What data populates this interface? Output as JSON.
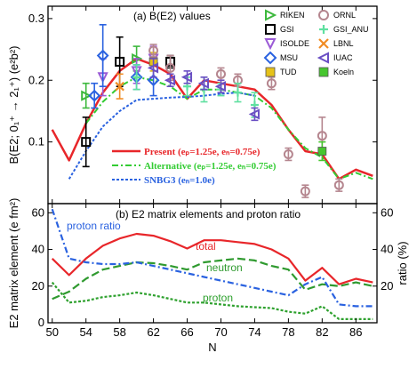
{
  "colors": {
    "present": "#e8262a",
    "alternative": "#33cc33",
    "snbg3": "#2a62e0",
    "total": "#e8262a",
    "neutron": "#2f9a2f",
    "proton": "#2ea12e",
    "proton_ratio": "#2a62e0",
    "RIKEN": "#3cb83c",
    "GSI": "#000000",
    "ISOLDE": "#9b5bd6",
    "MSU": "#2a62e0",
    "TUD": "#e6c21a",
    "ORNL": "#b5868f",
    "GSI_ANU": "#5fe0a0",
    "LBNL": "#f08c24",
    "IUAC": "#6a4fc4",
    "Koeln": "#46c62e"
  },
  "panel_a": {
    "title": "(a) B(E2) values",
    "ylabel": "B(E2; 0₁⁺ → 2₁⁺) (e²b²)",
    "yticks": [
      "0.1",
      "0.2",
      "0.3"
    ],
    "legend": [
      "RIKEN",
      "GSI",
      "ISOLDE",
      "MSU",
      "TUD",
      "ORNL",
      "GSI_ANU",
      "LBNL",
      "IUAC",
      "Koeln"
    ],
    "model_labels": {
      "present": "Present (eₚ=1.25e, eₙ=0.75e)",
      "alternative": "Alternative (eₚ=1.25e, eₙ=0.75e)",
      "snbg3": "SNBG3 (eₙ=1.0e)"
    }
  },
  "panel_b": {
    "title": "(b) E2 matrix elements and proton ratio",
    "ylabel": "E2 matrix element (e fm²)",
    "y2label": "ratio (%)",
    "yticks": [
      "0",
      "20",
      "40",
      "60"
    ],
    "y2ticks": [
      "20",
      "40",
      "60"
    ],
    "label_total": "total",
    "label_neutron": "neutron",
    "label_proton": "proton",
    "label_ratio": "proton ratio"
  },
  "xaxis": {
    "label": "N",
    "ticks": [
      "50",
      "54",
      "58",
      "62",
      "66",
      "70",
      "74",
      "78",
      "82",
      "86"
    ]
  },
  "chart_data": [
    {
      "type": "line",
      "title": "(a) B(E2) values",
      "xlabel": "N",
      "ylabel": "B(E2; 0₁⁺ → 2₁⁺) (e²b²)",
      "xlim": [
        49.5,
        88.5
      ],
      "ylim": [
        0,
        0.32
      ],
      "legend_position": "top-right",
      "series": [
        {
          "name": "Present (eₚ=1.25e, eₙ=0.75e)",
          "style": "solid",
          "x": [
            50,
            52,
            54,
            56,
            58,
            60,
            62,
            64,
            66,
            68,
            70,
            72,
            74,
            76,
            78,
            80,
            82,
            84,
            86,
            88
          ],
          "y": [
            0.12,
            0.07,
            0.13,
            0.18,
            0.215,
            0.235,
            0.225,
            0.21,
            0.17,
            0.2,
            0.195,
            0.19,
            0.185,
            0.16,
            0.12,
            0.085,
            0.08,
            0.04,
            0.055,
            0.045
          ]
        },
        {
          "name": "Alternative (eₚ=1.25e, eₙ=0.75e)",
          "style": "dash-dot",
          "x": [
            54,
            56,
            58,
            60,
            62,
            64,
            66,
            68,
            70,
            72,
            74,
            76,
            78,
            80,
            82,
            84,
            86,
            88
          ],
          "y": [
            0.13,
            0.165,
            0.19,
            0.205,
            0.2,
            0.19,
            0.17,
            0.185,
            0.185,
            0.18,
            0.175,
            0.155,
            0.12,
            0.09,
            0.075,
            0.04,
            0.05,
            0.04
          ]
        },
        {
          "name": "SNBG3 (eₙ=1.0e)",
          "style": "dotted",
          "x": [
            52,
            54,
            56,
            58,
            60,
            62,
            64,
            66,
            68,
            70,
            72,
            74
          ],
          "y": [
            0.04,
            0.085,
            0.125,
            0.15,
            0.168,
            0.17,
            0.172,
            0.173,
            0.175,
            0.178,
            0.18,
            0.175
          ]
        }
      ],
      "experimental": [
        {
          "name": "RIKEN",
          "marker": "triangle-right",
          "points": [
            [
              54,
              0.175,
              0.02
            ],
            [
              60,
              0.235,
              0.02
            ]
          ]
        },
        {
          "name": "GSI",
          "marker": "square-open",
          "points": [
            [
              54,
              0.1,
              0.04
            ],
            [
              58,
              0.23,
              0.04
            ],
            [
              64,
              0.23,
              0.01
            ]
          ]
        },
        {
          "name": "ISOLDE",
          "marker": "triangle-down",
          "points": [
            [
              56,
              0.205,
              0.03
            ],
            [
              60,
              0.215,
              0.02
            ],
            [
              62,
              0.235,
              0.02
            ]
          ]
        },
        {
          "name": "MSU",
          "marker": "diamond-open",
          "points": [
            [
              55,
              0.175,
              0.02
            ],
            [
              56,
              0.24,
              0.05
            ],
            [
              60,
              0.205,
              0.02
            ],
            [
              62,
              0.2,
              0.025
            ]
          ]
        },
        {
          "name": "TUD",
          "marker": "square-filled",
          "points": [
            [
              62,
              0.23,
              0.015
            ]
          ]
        },
        {
          "name": "ORNL",
          "marker": "circle-open",
          "points": [
            [
              62,
              0.248,
              0.01
            ],
            [
              64,
              0.22,
              0.02
            ],
            [
              70,
              0.21,
              0.01
            ],
            [
              72,
              0.2,
              0.01
            ],
            [
              76,
              0.195,
              0.01
            ],
            [
              78,
              0.08,
              0.01
            ],
            [
              80,
              0.02,
              0.01
            ],
            [
              82,
              0.11,
              0.03
            ],
            [
              84,
              0.03,
              0.01
            ]
          ]
        },
        {
          "name": "GSI_ANU",
          "marker": "plus",
          "points": [
            [
              60,
              0.205,
              0.02
            ],
            [
              66,
              0.19,
              0.015
            ],
            [
              68,
              0.185,
              0.02
            ],
            [
              70,
              0.185,
              0.01
            ],
            [
              72,
              0.18,
              0.015
            ],
            [
              74,
              0.16,
              0.02
            ]
          ]
        },
        {
          "name": "LBNL",
          "marker": "x",
          "points": [
            [
              58,
              0.19,
              0.02
            ]
          ]
        },
        {
          "name": "IUAC",
          "marker": "triangle-left",
          "points": [
            [
              62,
              0.22,
              0.015
            ],
            [
              64,
              0.2,
              0.01
            ],
            [
              66,
              0.205,
              0.01
            ],
            [
              68,
              0.195,
              0.01
            ],
            [
              70,
              0.19,
              0.01
            ],
            [
              74,
              0.145,
              0.01
            ]
          ]
        },
        {
          "name": "Koeln",
          "marker": "square-filled",
          "points": [
            [
              82,
              0.085,
              0.015
            ]
          ]
        }
      ]
    },
    {
      "type": "line",
      "title": "(b) E2 matrix elements and proton ratio",
      "xlabel": "N",
      "ylabel": "E2 matrix element (e fm²)",
      "y2label": "ratio (%)",
      "xlim": [
        49.5,
        88.5
      ],
      "ylim": [
        0,
        65
      ],
      "y2lim": [
        0,
        65
      ],
      "series": [
        {
          "name": "total",
          "style": "solid",
          "axis": "left",
          "x": [
            50,
            52,
            54,
            56,
            58,
            60,
            62,
            64,
            66,
            68,
            70,
            72,
            74,
            76,
            78,
            80,
            82,
            84,
            86,
            88
          ],
          "y": [
            35,
            26,
            35,
            42,
            46,
            48.5,
            47.5,
            44.5,
            40.5,
            45,
            45,
            44,
            43,
            40,
            35,
            23,
            30,
            21,
            24,
            22
          ]
        },
        {
          "name": "neutron",
          "style": "dashed",
          "axis": "left",
          "x": [
            50,
            52,
            54,
            56,
            58,
            60,
            62,
            64,
            66,
            68,
            70,
            72,
            74,
            76,
            78,
            80,
            82,
            84,
            86,
            88
          ],
          "y": [
            13,
            17,
            24,
            29,
            31,
            33,
            32.5,
            31,
            29,
            33,
            34,
            35,
            34,
            31,
            29,
            18,
            21,
            20,
            22,
            20
          ]
        },
        {
          "name": "proton",
          "style": "dotted",
          "axis": "left",
          "x": [
            50,
            52,
            54,
            56,
            58,
            60,
            62,
            64,
            66,
            68,
            70,
            72,
            74,
            76,
            78,
            80,
            82,
            84,
            86,
            88
          ],
          "y": [
            22,
            11,
            12,
            14,
            15,
            16.5,
            15,
            13,
            11,
            11,
            10,
            9,
            8.5,
            8,
            6,
            5,
            9,
            2,
            2,
            2
          ]
        },
        {
          "name": "proton ratio",
          "style": "dash-dot",
          "axis": "right",
          "x": [
            50,
            52,
            54,
            56,
            58,
            60,
            62,
            64,
            66,
            68,
            70,
            72,
            74,
            76,
            78,
            80,
            82,
            84,
            86,
            88
          ],
          "y": [
            62,
            35,
            33,
            32,
            32,
            33,
            31,
            29,
            27,
            25,
            23,
            21,
            19,
            17,
            15,
            21,
            25,
            10,
            9,
            9
          ]
        }
      ]
    }
  ]
}
